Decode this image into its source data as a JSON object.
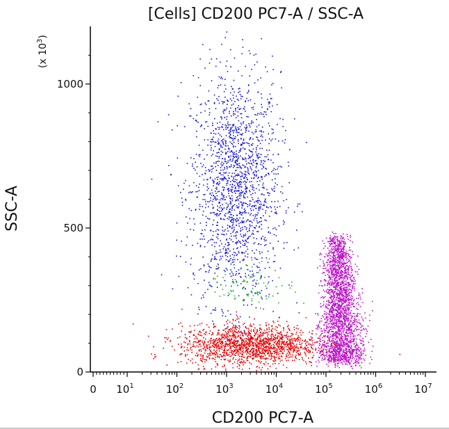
{
  "chart_data": {
    "type": "scatter",
    "title": "[Cells] CD200 PC7-A / SSC-A",
    "xlabel": "CD200 PC7-A",
    "ylabel": "SSC-A",
    "x_scale": "biexponential (log display)",
    "y_multiplier_label": "(x 10",
    "y_multiplier_exp": "3",
    "y_multiplier_close": ")",
    "xlim": [
      0,
      10000000
    ],
    "ylim": [
      0,
      1200
    ],
    "x_ticks": [
      {
        "value": 0,
        "base": "0",
        "exp": ""
      },
      {
        "value": 10,
        "base": "10",
        "exp": "1"
      },
      {
        "value": 100,
        "base": "10",
        "exp": "2"
      },
      {
        "value": 1000,
        "base": "10",
        "exp": "3"
      },
      {
        "value": 10000,
        "base": "10",
        "exp": "4"
      },
      {
        "value": 100000,
        "base": "10",
        "exp": "5"
      },
      {
        "value": 1000000,
        "base": "10",
        "exp": "6"
      },
      {
        "value": 10000000,
        "base": "10",
        "exp": "7"
      }
    ],
    "y_ticks": [
      {
        "value": 0,
        "label": "0"
      },
      {
        "value": 500,
        "label": "500"
      },
      {
        "value": 1000,
        "label": "1000"
      }
    ],
    "grid": false,
    "legend": "none",
    "series": [
      {
        "color": "#1414dc",
        "population": "high SSC, CD200 low/mid",
        "x_center": 1500,
        "y_center": 640,
        "y_spread": 200
      },
      {
        "color": "#e60000",
        "population": "low SSC, CD200 low",
        "x_center": 3000,
        "y_center": 95,
        "y_spread": 35
      },
      {
        "color": "#bb13c8",
        "population": "low-mid SSC, CD200 high",
        "x_center": 180000,
        "y_center": 220,
        "y_spread": 130
      },
      {
        "color": "#16b416",
        "population": "intermediate SSC",
        "x_center": 3000,
        "y_center": 310,
        "y_spread": 40
      }
    ]
  }
}
